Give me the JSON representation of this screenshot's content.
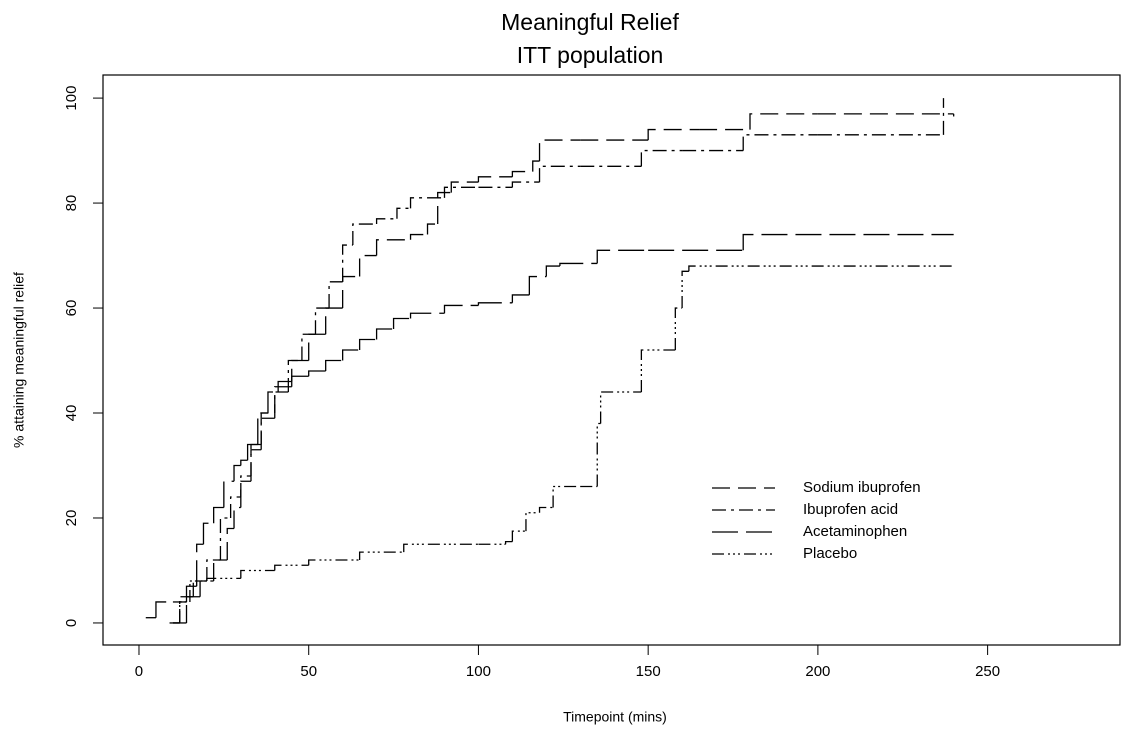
{
  "chart_data": {
    "type": "step",
    "title": "Meaningful Relief",
    "subtitle": "ITT population",
    "x_label": "Timepoint (mins)",
    "y_label": "% attaining meaningful relief",
    "xlim": [
      -10.6,
      289
    ],
    "ylim": [
      -4.2,
      104.4
    ],
    "xticks": [
      0,
      50,
      100,
      150,
      200,
      250
    ],
    "yticks": [
      0,
      20,
      40,
      60,
      80,
      100
    ],
    "legend": "lower right",
    "series": [
      {
        "name": "Sodium ibuprofen",
        "color": "#000000",
        "dash": "18,8",
        "x": [
          10,
          14,
          18,
          22,
          26,
          28,
          30,
          33,
          36,
          40,
          45,
          50,
          55,
          60,
          65,
          70,
          80,
          85,
          88,
          92,
          100,
          110,
          116,
          118,
          130,
          150,
          165,
          180,
          200,
          240
        ],
        "values": [
          0,
          5,
          8,
          12,
          18,
          22,
          27,
          33,
          40,
          45,
          50,
          55,
          60,
          66,
          70,
          73,
          74,
          76,
          82,
          84,
          85,
          86,
          88,
          92,
          92,
          94,
          94,
          97,
          97,
          96.5
        ]
      },
      {
        "name": "Ibuprofen acid",
        "color": "#000000",
        "dash": "14,5,3,5",
        "x": [
          9,
          12,
          16,
          20,
          24,
          27,
          30,
          33,
          36,
          40,
          44,
          48,
          52,
          56,
          60,
          63,
          70,
          76,
          80,
          90,
          100,
          110,
          118,
          130,
          148,
          160,
          178,
          200,
          237,
          237
        ],
        "values": [
          0,
          5,
          8,
          12,
          20,
          24,
          28,
          34,
          39,
          44,
          50,
          55,
          60,
          65,
          72,
          76,
          77,
          79,
          81,
          83,
          83,
          84,
          87,
          87,
          90,
          90,
          93,
          93,
          93,
          100
        ]
      },
      {
        "name": "Acetaminophen",
        "color": "#000000",
        "dash": "26,8",
        "x": [
          2,
          5,
          10,
          14,
          17,
          19,
          22,
          25,
          28,
          30,
          32,
          35,
          38,
          41,
          45,
          50,
          55,
          60,
          65,
          70,
          75,
          80,
          90,
          100,
          110,
          115,
          120,
          124,
          135,
          150,
          178,
          240
        ],
        "values": [
          1,
          4,
          4,
          7,
          15,
          19,
          22,
          27,
          30,
          31,
          34,
          40,
          44,
          46,
          47,
          48,
          50,
          52,
          54,
          56,
          58,
          59,
          60.5,
          61,
          62.5,
          66,
          68,
          68.5,
          71,
          71,
          74,
          74
        ]
      },
      {
        "name": "Placebo",
        "color": "#000000",
        "dash": "12,4,2,3,2,3,2,4",
        "x": [
          10,
          12,
          15,
          20,
          30,
          40,
          50,
          65,
          78,
          100,
          108,
          110,
          114,
          118,
          122,
          130,
          135,
          136,
          148,
          158,
          160,
          162,
          240
        ],
        "values": [
          0,
          4,
          8,
          8.5,
          10,
          11,
          12,
          13.5,
          15,
          15,
          15.5,
          17.5,
          21,
          22,
          26,
          26,
          38,
          44,
          52,
          60,
          67,
          68,
          68
        ]
      }
    ]
  }
}
